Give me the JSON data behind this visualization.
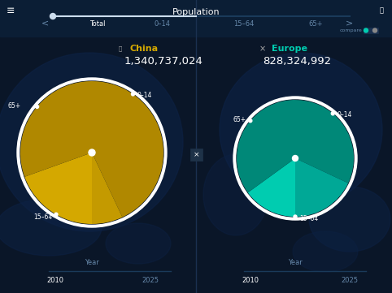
{
  "title": "Population",
  "bg_color": "#0a1628",
  "china_label": "China",
  "china_total": "1,340,737,024",
  "china_slices": [
    19.5,
    73.5,
    7.0
  ],
  "china_slice_colors": [
    "#d4a800",
    "#b08800",
    "#c49a00"
  ],
  "europe_label": "Europe",
  "europe_total": "828,324,992",
  "europe_slices": [
    15.0,
    67.0,
    18.0
  ],
  "europe_slice_colors": [
    "#00ccb0",
    "#008878",
    "#00a896"
  ],
  "top_tabs": [
    "Total",
    "0–14",
    "15–64",
    "65+"
  ],
  "bottom_label": "Year",
  "year_labels": [
    "2010",
    "2025"
  ],
  "text_color": "#ffffff",
  "dim_color": "#6688aa",
  "yellow_color": "#d4a800",
  "teal_color": "#00ccb0"
}
